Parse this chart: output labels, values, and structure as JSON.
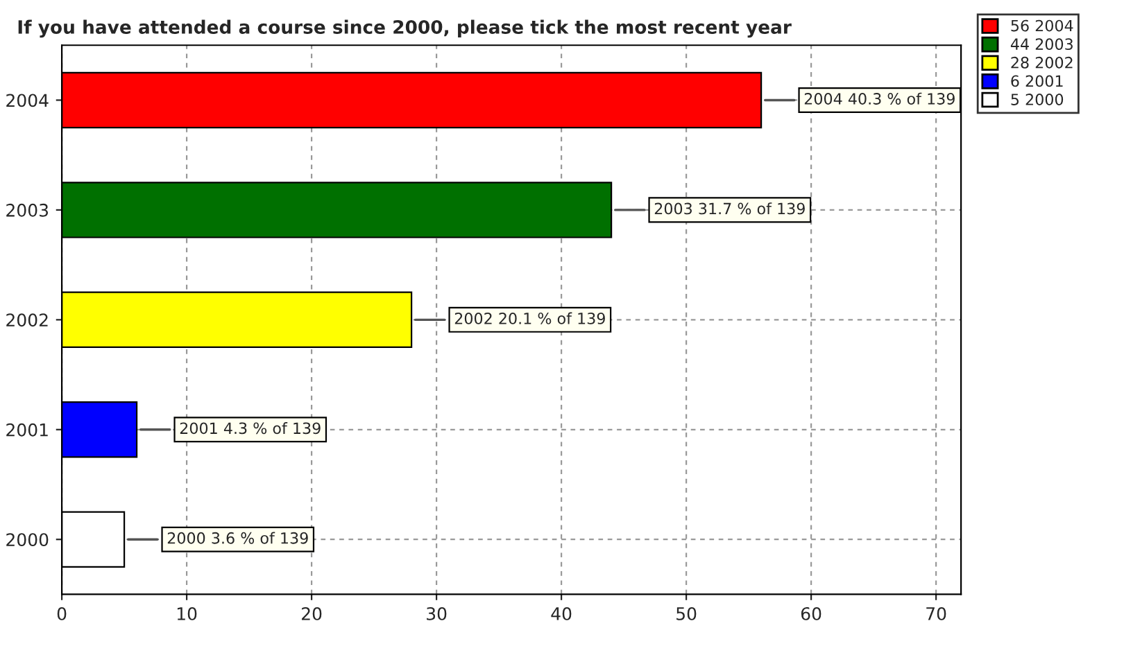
{
  "chart_data": {
    "type": "bar",
    "orientation": "horizontal",
    "title": "If you have attended a course since 2000, please tick the most recent year",
    "categories": [
      "2004",
      "2003",
      "2002",
      "2001",
      "2000"
    ],
    "series": [
      {
        "name": "56 2004",
        "color": "#ff0000",
        "values": [
          56,
          null,
          null,
          null,
          null
        ]
      },
      {
        "name": "44 2003",
        "color": "#007000",
        "values": [
          null,
          44,
          null,
          null,
          null
        ]
      },
      {
        "name": "28 2002",
        "color": "#ffff00",
        "values": [
          null,
          null,
          28,
          null,
          null
        ]
      },
      {
        "name": "6 2001",
        "color": "#0000ff",
        "values": [
          null,
          null,
          null,
          6,
          null
        ]
      },
      {
        "name": "5 2000",
        "color": "#ffffff",
        "values": [
          null,
          null,
          null,
          null,
          5
        ]
      }
    ],
    "annotations": [
      {
        "text": "2004 40.3 % of 139",
        "x": 56,
        "y": "2004"
      },
      {
        "text": "2003 31.7 % of 139",
        "x": 44,
        "y": "2003"
      },
      {
        "text": "2002 20.1 % of 139",
        "x": 28,
        "y": "2002"
      },
      {
        "text": "2001 4.3 % of 139",
        "x": 6,
        "y": "2001"
      },
      {
        "text": "2000 3.6 % of 139",
        "x": 5,
        "y": "2000"
      }
    ],
    "xlim": [
      0,
      72
    ],
    "xticks": [
      0,
      10,
      20,
      30,
      40,
      50,
      60,
      70
    ],
    "grid": true,
    "legend": "top right"
  }
}
